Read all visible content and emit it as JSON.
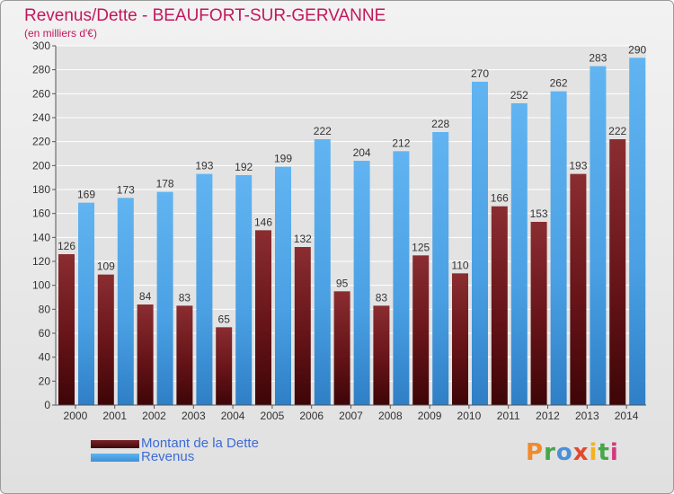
{
  "chart_data": {
    "type": "bar",
    "title": "Revenus/Dette - BEAUFORT-SUR-GERVANNE",
    "subtitle": "(en milliers d'€)",
    "categories": [
      "2000",
      "2001",
      "2002",
      "2003",
      "2004",
      "2005",
      "2006",
      "2007",
      "2008",
      "2009",
      "2010",
      "2011",
      "2012",
      "2013",
      "2014"
    ],
    "series": [
      {
        "name": "Montant de la Dette",
        "color": "#7b2226",
        "values": [
          126,
          109,
          84,
          83,
          65,
          146,
          132,
          95,
          83,
          125,
          110,
          166,
          153,
          193,
          222
        ]
      },
      {
        "name": "Revenus",
        "color": "#4da3e6",
        "values": [
          169,
          173,
          178,
          193,
          192,
          199,
          222,
          204,
          212,
          228,
          270,
          252,
          262,
          283,
          290
        ]
      }
    ],
    "ylim": [
      0,
      300
    ],
    "yticks": [
      0,
      20,
      40,
      60,
      80,
      100,
      120,
      140,
      160,
      180,
      200,
      220,
      240,
      260,
      280,
      300
    ],
    "grid": true,
    "legend_position": "bottom-left"
  },
  "brand": {
    "letters": [
      "P",
      "r",
      "o",
      "x",
      "i",
      "t",
      "i"
    ],
    "colors": [
      "#f08a2c",
      "#45a748",
      "#4a90d9",
      "#e04a2f",
      "#f2b320",
      "#45a748",
      "#d23a7e"
    ]
  }
}
